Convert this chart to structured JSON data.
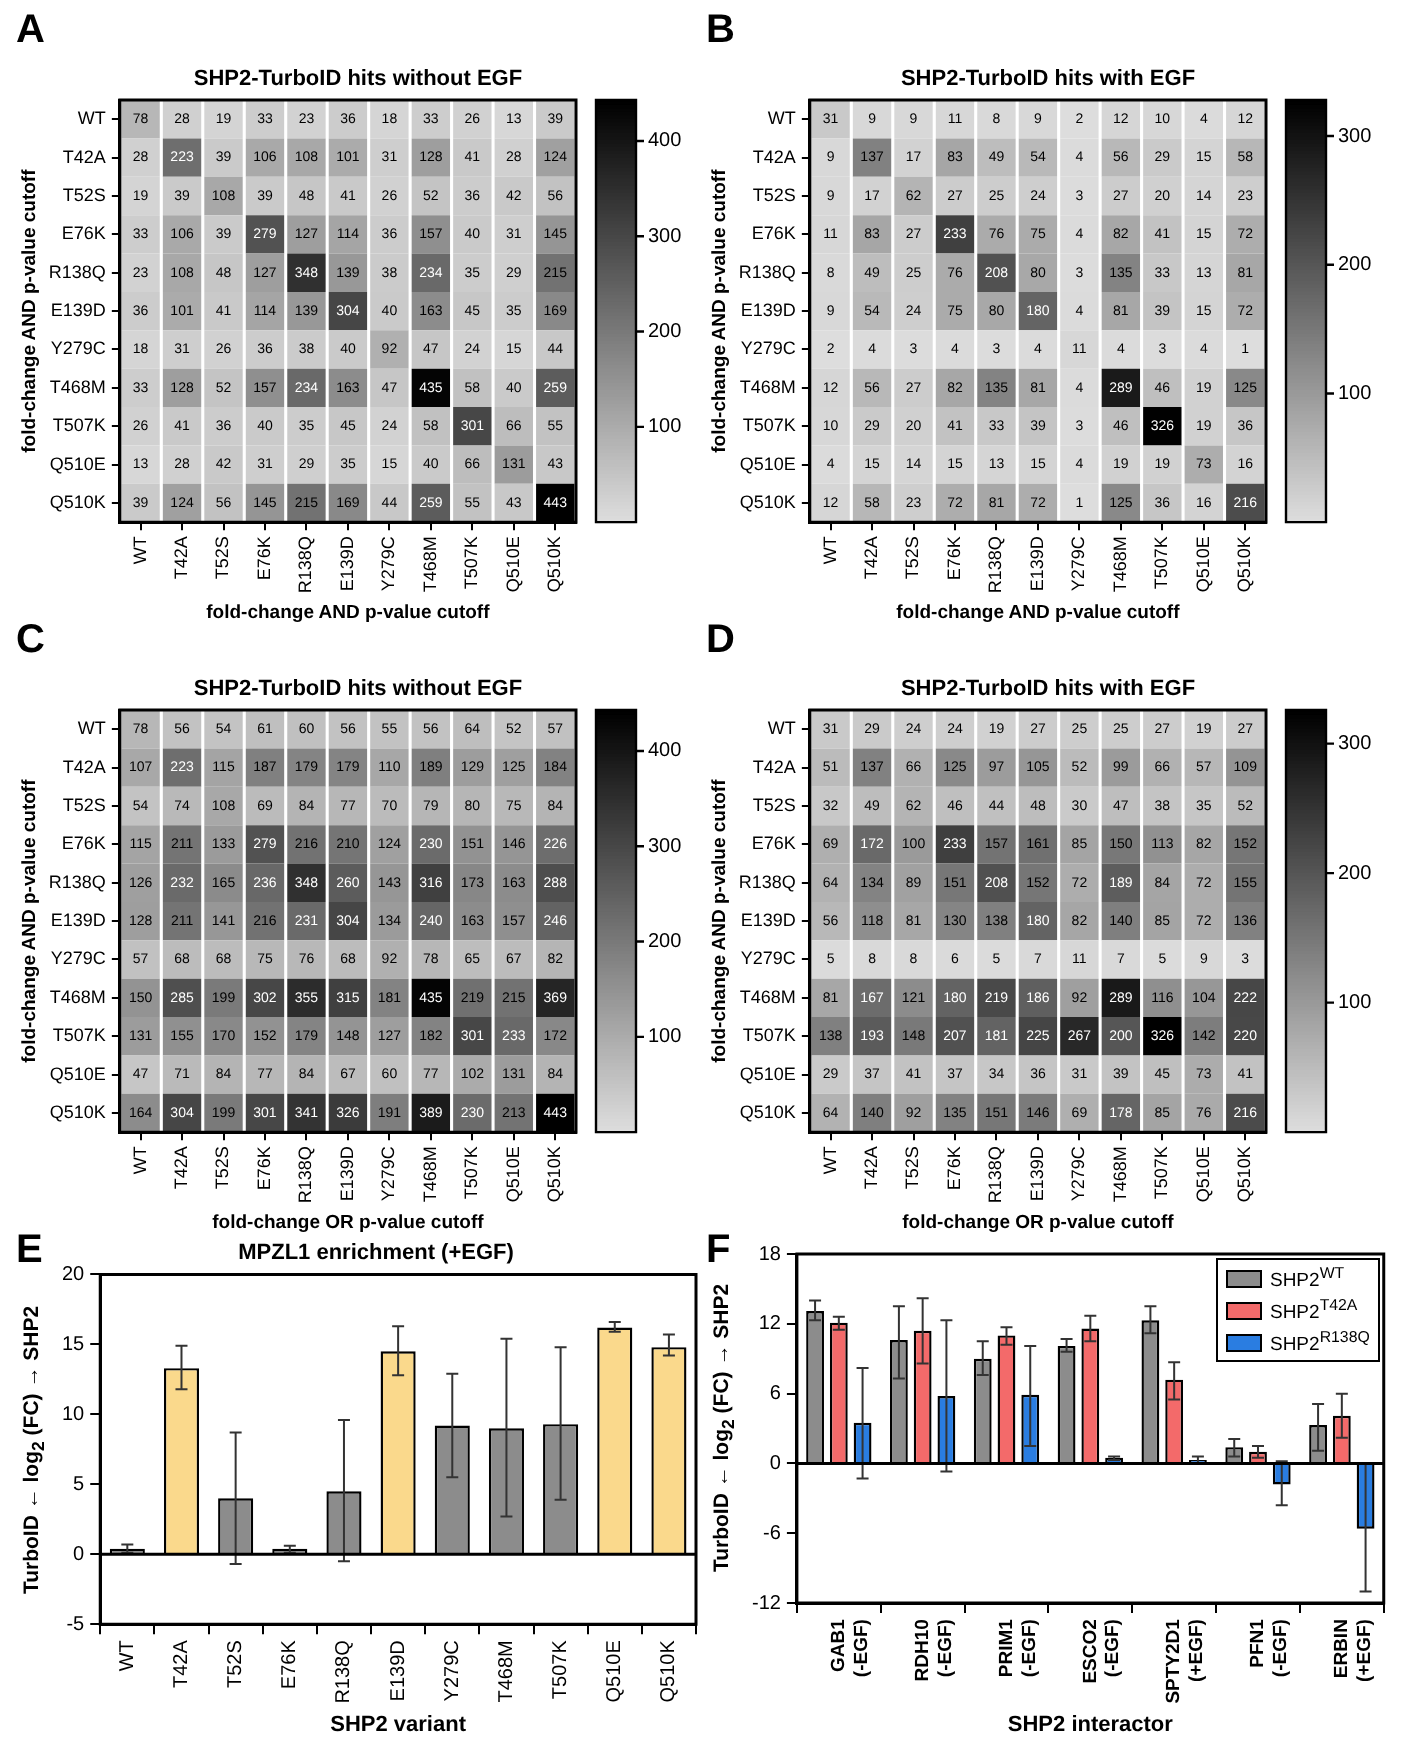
{
  "chart_data": [
    {
      "type": "heatmap",
      "title": "SHP2-TurboID hits without EGF",
      "xlabel": "fold-change AND p-value cutoff",
      "ylabel": "fold-change AND p-value cutoff",
      "annotations": [
        "A"
      ],
      "categories": [
        "WT",
        "T42A",
        "T52S",
        "E76K",
        "R138Q",
        "E139D",
        "Y279C",
        "T468M",
        "T507K",
        "Q510E",
        "Q510K"
      ],
      "y_categories": [
        "WT",
        "T42A",
        "T52S",
        "E76K",
        "R138Q",
        "E139D",
        "Y279C",
        "T468M",
        "T507K",
        "Q510E",
        "Q510K"
      ],
      "cells": [
        [
          78,
          28,
          19,
          33,
          23,
          36,
          18,
          33,
          26,
          13,
          39
        ],
        [
          28,
          223,
          39,
          106,
          108,
          101,
          31,
          128,
          41,
          28,
          124
        ],
        [
          19,
          39,
          108,
          39,
          48,
          41,
          26,
          52,
          36,
          42,
          56
        ],
        [
          33,
          106,
          39,
          279,
          127,
          114,
          36,
          157,
          40,
          31,
          145
        ],
        [
          23,
          108,
          48,
          127,
          348,
          139,
          38,
          234,
          35,
          29,
          215
        ],
        [
          36,
          101,
          41,
          114,
          139,
          304,
          40,
          163,
          45,
          35,
          169
        ],
        [
          18,
          31,
          26,
          36,
          38,
          40,
          92,
          47,
          24,
          15,
          44
        ],
        [
          33,
          128,
          52,
          157,
          234,
          163,
          47,
          435,
          58,
          40,
          259
        ],
        [
          26,
          41,
          36,
          40,
          35,
          45,
          24,
          58,
          301,
          66,
          55
        ],
        [
          13,
          28,
          42,
          31,
          29,
          35,
          15,
          40,
          66,
          131,
          43
        ],
        [
          39,
          124,
          56,
          145,
          215,
          169,
          44,
          259,
          55,
          43,
          443
        ]
      ],
      "clim": [
        0,
        443
      ],
      "cticks": [
        100,
        200,
        300,
        400
      ],
      "data_labels": true
    },
    {
      "type": "heatmap",
      "title": "SHP2-TurboID hits with EGF",
      "xlabel": "fold-change AND p-value cutoff",
      "ylabel": "fold-change AND p-value cutoff",
      "annotations": [
        "B"
      ],
      "categories": [
        "WT",
        "T42A",
        "T52S",
        "E76K",
        "R138Q",
        "E139D",
        "Y279C",
        "T468M",
        "T507K",
        "Q510E",
        "Q510K"
      ],
      "y_categories": [
        "WT",
        "T42A",
        "T52S",
        "E76K",
        "R138Q",
        "E139D",
        "Y279C",
        "T468M",
        "T507K",
        "Q510E",
        "Q510K"
      ],
      "cells": [
        [
          31,
          9,
          9,
          11,
          8,
          9,
          2,
          12,
          10,
          4,
          12
        ],
        [
          9,
          137,
          17,
          83,
          49,
          54,
          4,
          56,
          29,
          15,
          58
        ],
        [
          9,
          17,
          62,
          27,
          25,
          24,
          3,
          27,
          20,
          14,
          23
        ],
        [
          11,
          83,
          27,
          233,
          76,
          75,
          4,
          82,
          41,
          15,
          72
        ],
        [
          8,
          49,
          25,
          76,
          208,
          80,
          3,
          135,
          33,
          13,
          81
        ],
        [
          9,
          54,
          24,
          75,
          80,
          180,
          4,
          81,
          39,
          15,
          72
        ],
        [
          2,
          4,
          3,
          4,
          3,
          4,
          11,
          4,
          3,
          4,
          1
        ],
        [
          12,
          56,
          27,
          82,
          135,
          81,
          4,
          289,
          46,
          19,
          125
        ],
        [
          10,
          29,
          20,
          41,
          33,
          39,
          3,
          46,
          326,
          19,
          36
        ],
        [
          4,
          15,
          14,
          15,
          13,
          15,
          4,
          19,
          19,
          73,
          16
        ],
        [
          12,
          58,
          23,
          72,
          81,
          72,
          1,
          125,
          36,
          16,
          216
        ]
      ],
      "clim": [
        0,
        328
      ],
      "cticks": [
        100,
        200,
        300
      ],
      "data_labels": true
    },
    {
      "type": "heatmap",
      "title": "SHP2-TurboID hits without EGF",
      "xlabel": "fold-change OR p-value cutoff",
      "ylabel": "fold-change AND p-value cutoff",
      "annotations": [
        "C"
      ],
      "categories": [
        "WT",
        "T42A",
        "T52S",
        "E76K",
        "R138Q",
        "E139D",
        "Y279C",
        "T468M",
        "T507K",
        "Q510E",
        "Q510K"
      ],
      "y_categories": [
        "WT",
        "T42A",
        "T52S",
        "E76K",
        "R138Q",
        "E139D",
        "Y279C",
        "T468M",
        "T507K",
        "Q510E",
        "Q510K"
      ],
      "cells": [
        [
          78,
          56,
          54,
          61,
          60,
          56,
          55,
          56,
          64,
          52,
          57
        ],
        [
          107,
          223,
          115,
          187,
          179,
          179,
          110,
          189,
          129,
          125,
          184
        ],
        [
          54,
          74,
          108,
          69,
          84,
          77,
          70,
          79,
          80,
          75,
          84
        ],
        [
          115,
          211,
          133,
          279,
          216,
          210,
          124,
          230,
          151,
          146,
          226
        ],
        [
          126,
          232,
          165,
          236,
          348,
          260,
          143,
          316,
          173,
          163,
          288
        ],
        [
          128,
          211,
          141,
          216,
          231,
          304,
          134,
          240,
          163,
          157,
          246
        ],
        [
          57,
          68,
          68,
          75,
          76,
          68,
          92,
          78,
          65,
          67,
          82
        ],
        [
          150,
          285,
          199,
          302,
          355,
          315,
          181,
          435,
          219,
          215,
          369
        ],
        [
          131,
          155,
          170,
          152,
          179,
          148,
          127,
          182,
          301,
          233,
          172
        ],
        [
          47,
          71,
          84,
          77,
          84,
          67,
          60,
          77,
          102,
          131,
          84
        ],
        [
          164,
          304,
          199,
          301,
          341,
          326,
          191,
          389,
          230,
          213,
          443
        ]
      ],
      "clim": [
        0,
        443
      ],
      "cticks": [
        100,
        200,
        300,
        400
      ],
      "data_labels": true
    },
    {
      "type": "heatmap",
      "title": "SHP2-TurboID hits with EGF",
      "xlabel": "fold-change OR p-value cutoff",
      "ylabel": "fold-change AND p-value cutoff",
      "annotations": [
        "D"
      ],
      "categories": [
        "WT",
        "T42A",
        "T52S",
        "E76K",
        "R138Q",
        "E139D",
        "Y279C",
        "T468M",
        "T507K",
        "Q510E",
        "Q510K"
      ],
      "y_categories": [
        "WT",
        "T42A",
        "T52S",
        "E76K",
        "R138Q",
        "E139D",
        "Y279C",
        "T468M",
        "T507K",
        "Q510E",
        "Q510K"
      ],
      "cells": [
        [
          31,
          29,
          24,
          24,
          19,
          27,
          25,
          25,
          27,
          19,
          27
        ],
        [
          51,
          137,
          66,
          125,
          97,
          105,
          52,
          99,
          66,
          57,
          109
        ],
        [
          32,
          49,
          62,
          46,
          44,
          48,
          30,
          47,
          38,
          35,
          52
        ],
        [
          69,
          172,
          100,
          233,
          157,
          161,
          85,
          150,
          113,
          82,
          152
        ],
        [
          64,
          134,
          89,
          151,
          208,
          152,
          72,
          189,
          84,
          72,
          155
        ],
        [
          56,
          118,
          81,
          130,
          138,
          180,
          82,
          140,
          85,
          72,
          136
        ],
        [
          5,
          8,
          8,
          6,
          5,
          7,
          11,
          7,
          5,
          9,
          3
        ],
        [
          81,
          167,
          121,
          180,
          219,
          186,
          92,
          289,
          116,
          104,
          222
        ],
        [
          138,
          193,
          148,
          207,
          181,
          225,
          267,
          200,
          326,
          142,
          220
        ],
        [
          29,
          37,
          41,
          37,
          34,
          36,
          31,
          39,
          45,
          73,
          41
        ],
        [
          64,
          140,
          92,
          135,
          151,
          146,
          69,
          178,
          85,
          76,
          216
        ]
      ],
      "clim": [
        0,
        326
      ],
      "cticks": [
        100,
        200,
        300
      ],
      "data_labels": true
    },
    {
      "type": "bar",
      "title": "MPZL1 enrichment (+EGF)",
      "xlabel": "SHP2 variant",
      "ylabel": "TurboID ← log$_{2}$ (FC) → SHP2",
      "annotations": [
        "E"
      ],
      "categories": [
        "WT",
        "T42A",
        "T52S",
        "E76K",
        "R138Q",
        "E139D",
        "Y279C",
        "T468M",
        "T507K",
        "Q510E",
        "Q510K"
      ],
      "values": [
        0.4,
        13.3,
        4.0,
        0.4,
        4.5,
        14.5,
        9.2,
        9.0,
        9.3,
        16.2,
        14.8
      ],
      "colors": [
        "#8c8c8c",
        "#fad98c",
        "#8c8c8c",
        "#8c8c8c",
        "#8c8c8c",
        "#fad98c",
        "#8c8c8c",
        "#8c8c8c",
        "#8c8c8c",
        "#fad98c",
        "#fad98c"
      ],
      "errors": [
        [
          0.1,
          0.7
        ],
        [
          11.8,
          14.9
        ],
        [
          -0.7,
          8.7
        ],
        [
          0.1,
          0.6
        ],
        [
          -0.5,
          9.6
        ],
        [
          12.8,
          16.3
        ],
        [
          5.5,
          12.9
        ],
        [
          2.7,
          15.4
        ],
        [
          3.9,
          14.8
        ],
        [
          15.9,
          16.6
        ],
        [
          14.2,
          15.7
        ]
      ],
      "ylim": [
        -5,
        20
      ],
      "yticks": [
        -5,
        0,
        5,
        10,
        15,
        20
      ]
    },
    {
      "type": "bar",
      "xlabel": "SHP2 interactor",
      "ylabel": "TurboID ← log$_{2}$ (FC) → SHP2",
      "annotations": [
        "F"
      ],
      "categories": [
        "GAB1 (-EGF)",
        "RDH10 (-EGF)",
        "PRIM1 (-EGF)",
        "ESCO2 (-EGF)",
        "SPTY2D1 (+EGF)",
        "PFN1 (-EGF)",
        "ERBIN (+EGF)"
      ],
      "series": [
        {
          "name": "SHP2$^{WT}$",
          "color": "#8c8c8c",
          "values": [
            13.1,
            10.6,
            9.0,
            10.1,
            12.3,
            1.4,
            3.3
          ],
          "errors": [
            [
              12.3,
              14.0
            ],
            [
              7.3,
              13.5
            ],
            [
              7.6,
              10.5
            ],
            [
              9.6,
              10.7
            ],
            [
              11.2,
              13.5
            ],
            [
              0.6,
              2.1
            ],
            [
              1.1,
              5.1
            ]
          ]
        },
        {
          "name": "SHP2$^{T42A}$",
          "color": "#f36a6a",
          "values": [
            12.1,
            11.4,
            11.0,
            11.6,
            7.2,
            1.0,
            4.1
          ],
          "errors": [
            [
              11.5,
              12.6
            ],
            [
              8.6,
              14.2
            ],
            [
              10.2,
              11.7
            ],
            [
              10.5,
              12.7
            ],
            [
              5.5,
              8.7
            ],
            [
              0.5,
              1.5
            ],
            [
              2.2,
              6.0
            ]
          ]
        },
        {
          "name": "SHP2$^{R138Q}$",
          "color": "#2a7de1",
          "values": [
            3.5,
            5.8,
            5.9,
            0.5,
            0.3,
            -1.8,
            -5.6
          ],
          "errors": [
            [
              -1.3,
              8.2
            ],
            [
              -0.7,
              12.3
            ],
            [
              1.5,
              10.1
            ],
            [
              0.3,
              0.6
            ],
            [
              0.0,
              0.6
            ],
            [
              -3.6,
              0.2
            ],
            [
              -11.0,
              0.0
            ]
          ]
        }
      ],
      "ylim": [
        -12,
        18
      ],
      "yticks": [
        -12,
        -6,
        0,
        6,
        12,
        18
      ],
      "legend": "top right"
    }
  ]
}
